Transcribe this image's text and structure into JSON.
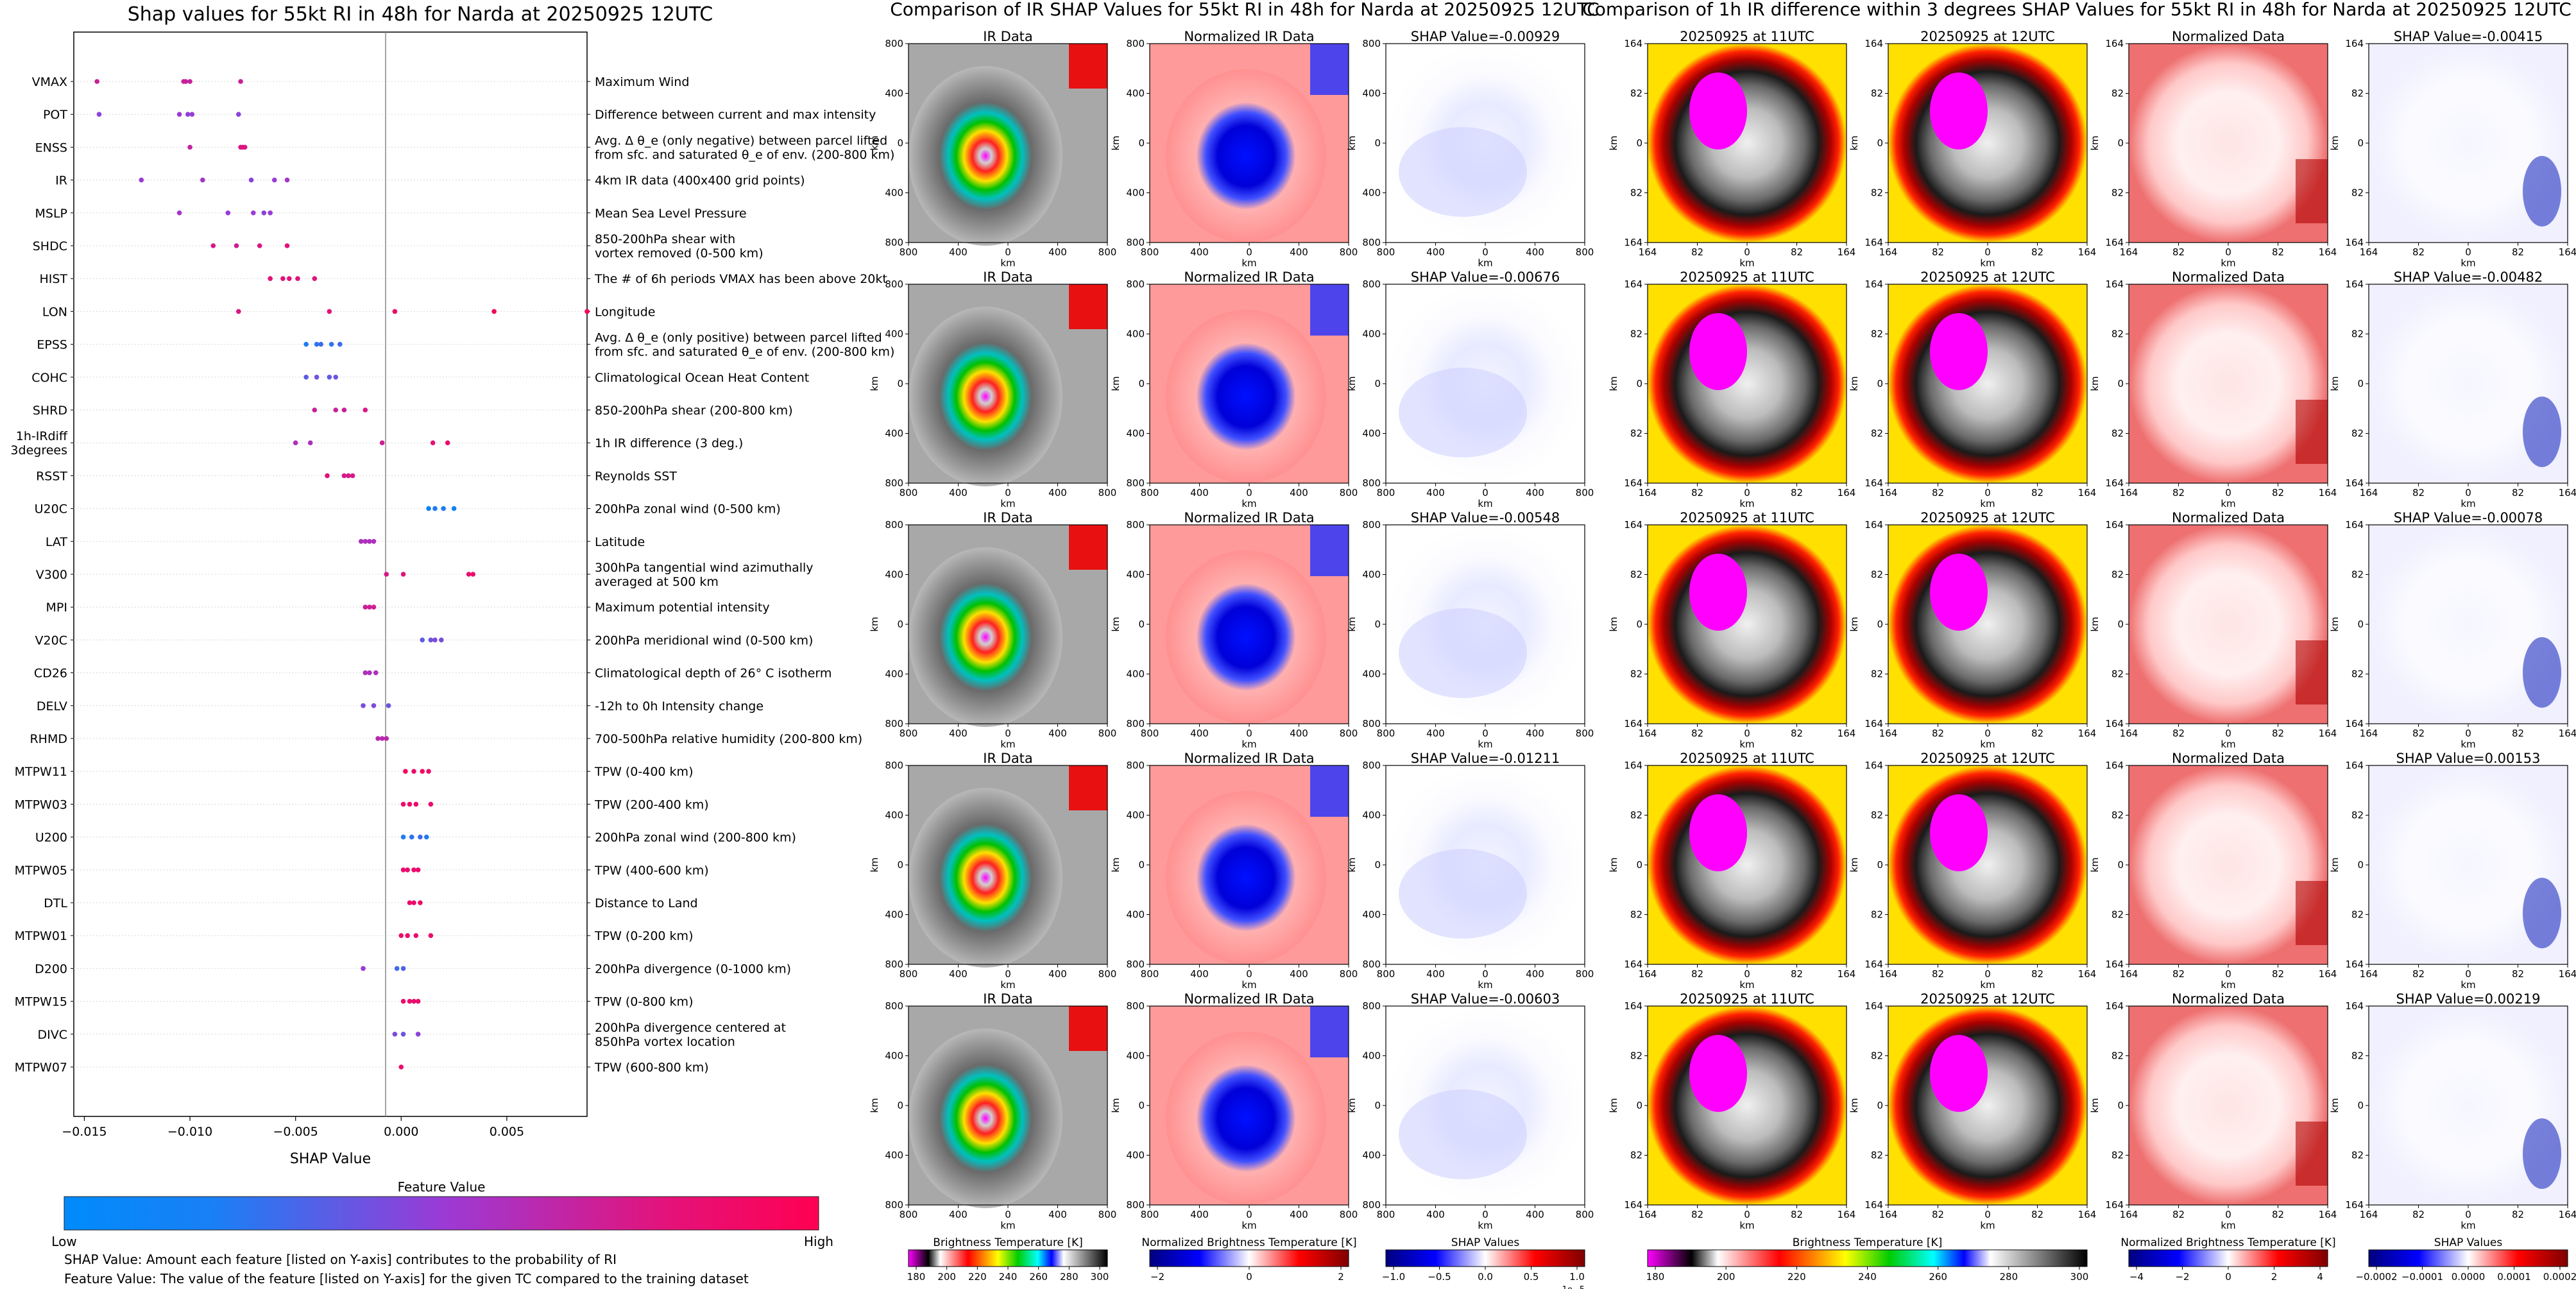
{
  "left": {
    "title": "Shap values for 55kt RI in 48h for Narda at 20250925 12UTC",
    "xlabel": "SHAP Value",
    "colorbar_title": "Feature Value",
    "colorbar_low": "Low",
    "colorbar_high": "High",
    "notes": [
      "SHAP Value: Amount each feature [listed on Y-axis] contributes to the probability of RI",
      "Feature Value: The value of the feature [listed on Y-axis] for the given TC compared to the training dataset"
    ]
  },
  "middle": {
    "title": "Comparison of IR SHAP Values for 55kt RI in 48h for Narda at 20250925 12UTC",
    "col_titles": [
      "IR Data",
      "Normalized IR Data"
    ],
    "shap_titles": [
      "SHAP Value=-0.00929",
      "SHAP Value=-0.00676",
      "SHAP Value=-0.00548",
      "SHAP Value=-0.01211",
      "SHAP Value=-0.00603"
    ],
    "ticks": [
      "800",
      "400",
      "0",
      "400",
      "800"
    ],
    "axis_label": "km",
    "colorbars": [
      {
        "label": "Brightness Temperature [K]",
        "ticks": [
          "180",
          "200",
          "220",
          "240",
          "260",
          "280",
          "300"
        ]
      },
      {
        "label": "Normalized Brightness Temperature [K]",
        "ticks": [
          "−2",
          "0",
          "2"
        ]
      },
      {
        "label": "SHAP Values",
        "ticks": [
          "−1.0",
          "−0.5",
          "0.0",
          "0.5",
          "1.0"
        ],
        "exponent": "1e−5"
      }
    ]
  },
  "right": {
    "title": "Comparison of 1h IR difference within 3 degrees SHAP Values for 55kt RI in 48h for Narda at 20250925 12UTC",
    "col_titles": [
      "20250925 at 11UTC",
      "20250925 at 12UTC",
      "Normalized Data"
    ],
    "shap_titles": [
      "SHAP Value=-0.00415",
      "SHAP Value=-0.00482",
      "SHAP Value=-0.00078",
      "SHAP Value=0.00153",
      "SHAP Value=0.00219"
    ],
    "ticks": [
      "164",
      "82",
      "0",
      "82",
      "164"
    ],
    "axis_label": "km",
    "colorbars": [
      {
        "label": "Brightness Temperature [K]",
        "ticks": [
          "180",
          "200",
          "220",
          "240",
          "260",
          "280",
          "300"
        ]
      },
      {
        "label": "Normalized Brightness Temperature [K]",
        "ticks": [
          "−4",
          "−2",
          "0",
          "2",
          "4"
        ]
      },
      {
        "label": "SHAP Values",
        "ticks": [
          "−0.0002",
          "−0.0001",
          "0.0000",
          "0.0001",
          "0.0002"
        ]
      }
    ]
  },
  "chart_data": {
    "type": "scatter",
    "title": "Shap values for 55kt RI in 48h for Narda at 20250925 12UTC",
    "xlabel": "SHAP Value",
    "xlim": [
      -0.0155,
      0.0088
    ],
    "xticks": [
      -0.015,
      -0.01,
      -0.005,
      0.0,
      0.005
    ],
    "xtick_labels": [
      "−0.015",
      "−0.010",
      "−0.005",
      "0.000",
      "0.005"
    ],
    "colors": {
      "low": "#008bfb",
      "high": "#ff0052"
    },
    "features": [
      {
        "name": "VMAX",
        "desc": [
          "Maximum Wind"
        ],
        "points": [
          [
            -0.0144,
            0.75
          ],
          [
            -0.0103,
            0.7
          ],
          [
            -0.0102,
            0.75
          ],
          [
            -0.01,
            0.7
          ],
          [
            -0.0076,
            0.75
          ]
        ]
      },
      {
        "name": "POT",
        "desc": [
          "Difference between current and max intensity"
        ],
        "points": [
          [
            -0.0143,
            0.45
          ],
          [
            -0.0105,
            0.5
          ],
          [
            -0.0101,
            0.45
          ],
          [
            -0.0099,
            0.5
          ],
          [
            -0.0077,
            0.45
          ]
        ]
      },
      {
        "name": "ENSS",
        "desc": [
          "Avg. Δ θ_e (only negative) between parcel lifted",
          "from sfc. and saturated θ_e of env. (200-800 km)"
        ],
        "points": [
          [
            -0.01,
            0.7
          ],
          [
            -0.0076,
            0.8
          ],
          [
            -0.0075,
            0.85
          ],
          [
            -0.0074,
            0.8
          ]
        ]
      },
      {
        "name": "IR",
        "desc": [
          "4km IR data (400x400 grid points)"
        ],
        "points": [
          [
            -0.0123,
            0.5
          ],
          [
            -0.0094,
            0.55
          ],
          [
            -0.0071,
            0.45
          ],
          [
            -0.006,
            0.5
          ],
          [
            -0.0054,
            0.55
          ]
        ]
      },
      {
        "name": "MSLP",
        "desc": [
          "Mean Sea Level Pressure"
        ],
        "points": [
          [
            -0.0105,
            0.55
          ],
          [
            -0.0082,
            0.5
          ],
          [
            -0.007,
            0.5
          ],
          [
            -0.0065,
            0.45
          ],
          [
            -0.0062,
            0.5
          ]
        ]
      },
      {
        "name": "SHDC",
        "desc": [
          "850-200hPa shear with",
          "vortex removed (0-500 km)"
        ],
        "points": [
          [
            -0.0089,
            0.8
          ],
          [
            -0.0078,
            0.75
          ],
          [
            -0.0067,
            0.8
          ],
          [
            -0.0054,
            0.85
          ]
        ]
      },
      {
        "name": "HIST",
        "desc": [
          "The # of 6h periods VMAX has been above 20kt"
        ],
        "points": [
          [
            -0.0062,
            0.85
          ],
          [
            -0.0056,
            0.85
          ],
          [
            -0.0053,
            0.85
          ],
          [
            -0.0049,
            0.85
          ],
          [
            -0.0041,
            0.85
          ]
        ]
      },
      {
        "name": "LON",
        "desc": [
          "Longitude"
        ],
        "points": [
          [
            -0.0077,
            0.8
          ],
          [
            -0.0034,
            0.85
          ],
          [
            -0.0003,
            0.9
          ],
          [
            0.0044,
            0.95
          ],
          [
            0.0088,
            1.0
          ]
        ]
      },
      {
        "name": "EPSS",
        "desc": [
          "Avg. Δ θ_e (only positive) between parcel lifted",
          "from sfc. and saturated θ_e of env. (200-800 km)"
        ],
        "points": [
          [
            -0.0045,
            0.1
          ],
          [
            -0.004,
            0.15
          ],
          [
            -0.0038,
            0.2
          ],
          [
            -0.0033,
            0.15
          ],
          [
            -0.0029,
            0.2
          ]
        ]
      },
      {
        "name": "COHC",
        "desc": [
          "Climatological Ocean Heat Content"
        ],
        "points": [
          [
            -0.0045,
            0.3
          ],
          [
            -0.004,
            0.35
          ],
          [
            -0.0034,
            0.3
          ],
          [
            -0.0031,
            0.35
          ]
        ]
      },
      {
        "name": "SHRD",
        "desc": [
          "850-200hPa shear (200-800 km)"
        ],
        "points": [
          [
            -0.0041,
            0.75
          ],
          [
            -0.0031,
            0.75
          ],
          [
            -0.0027,
            0.75
          ],
          [
            -0.0017,
            0.8
          ]
        ]
      },
      {
        "name": "1h-IRdiff\n3degrees",
        "desc": [
          "1h IR difference (3 deg.)"
        ],
        "points": [
          [
            -0.005,
            0.6
          ],
          [
            -0.0043,
            0.6
          ],
          [
            -0.0009,
            0.75
          ],
          [
            0.0015,
            0.85
          ],
          [
            0.0022,
            0.9
          ]
        ]
      },
      {
        "name": "RSST",
        "desc": [
          "Reynolds SST"
        ],
        "points": [
          [
            -0.0035,
            0.85
          ],
          [
            -0.0027,
            0.8
          ],
          [
            -0.0025,
            0.8
          ],
          [
            -0.0023,
            0.8
          ]
        ]
      },
      {
        "name": "U20C",
        "desc": [
          "200hPa zonal wind (0-500 km)"
        ],
        "points": [
          [
            0.0013,
            0.05
          ],
          [
            0.0016,
            0.1
          ],
          [
            0.002,
            0.1
          ],
          [
            0.0025,
            0.05
          ]
        ]
      },
      {
        "name": "LAT",
        "desc": [
          "Latitude"
        ],
        "points": [
          [
            -0.0019,
            0.6
          ],
          [
            -0.0017,
            0.6
          ],
          [
            -0.0015,
            0.6
          ],
          [
            -0.0013,
            0.6
          ]
        ]
      },
      {
        "name": "V300",
        "desc": [
          "300hPa tangential wind azimuthally",
          "averaged at 500 km"
        ],
        "points": [
          [
            -0.0007,
            0.8
          ],
          [
            0.0001,
            0.85
          ],
          [
            0.0032,
            0.9
          ],
          [
            0.0034,
            0.9
          ]
        ]
      },
      {
        "name": "MPI",
        "desc": [
          "Maximum potential intensity"
        ],
        "points": [
          [
            -0.0017,
            0.75
          ],
          [
            -0.0015,
            0.75
          ],
          [
            -0.0013,
            0.75
          ]
        ]
      },
      {
        "name": "V20C",
        "desc": [
          "200hPa meridional wind (0-500 km)"
        ],
        "points": [
          [
            0.001,
            0.3
          ],
          [
            0.0014,
            0.35
          ],
          [
            0.0016,
            0.4
          ],
          [
            0.0019,
            0.4
          ]
        ]
      },
      {
        "name": "CD26",
        "desc": [
          "Climatological depth of 26° C isotherm"
        ],
        "points": [
          [
            -0.0017,
            0.6
          ],
          [
            -0.0015,
            0.6
          ],
          [
            -0.0012,
            0.6
          ]
        ]
      },
      {
        "name": "DELV",
        "desc": [
          "-12h to 0h Intensity change"
        ],
        "points": [
          [
            -0.0018,
            0.4
          ],
          [
            -0.0013,
            0.4
          ],
          [
            -0.0006,
            0.35
          ]
        ]
      },
      {
        "name": "RHMD",
        "desc": [
          "700-500hPa relative humidity (200-800 km)"
        ],
        "points": [
          [
            -0.0011,
            0.65
          ],
          [
            -0.0009,
            0.65
          ],
          [
            -0.0007,
            0.65
          ]
        ]
      },
      {
        "name": "MTPW11",
        "desc": [
          "TPW (0-400 km)"
        ],
        "points": [
          [
            0.0002,
            0.95
          ],
          [
            0.0006,
            0.9
          ],
          [
            0.001,
            0.95
          ],
          [
            0.0013,
            0.9
          ]
        ]
      },
      {
        "name": "MTPW03",
        "desc": [
          "TPW (200-400 km)"
        ],
        "points": [
          [
            0.0001,
            0.9
          ],
          [
            0.0004,
            0.9
          ],
          [
            0.0007,
            0.9
          ],
          [
            0.0014,
            0.9
          ]
        ]
      },
      {
        "name": "U200",
        "desc": [
          "200hPa zonal wind (200-800 km)"
        ],
        "points": [
          [
            0.0001,
            0.1
          ],
          [
            0.0005,
            0.15
          ],
          [
            0.0009,
            0.2
          ],
          [
            0.0012,
            0.1
          ]
        ]
      },
      {
        "name": "MTPW05",
        "desc": [
          "TPW (400-600 km)"
        ],
        "points": [
          [
            0.0001,
            0.9
          ],
          [
            0.0003,
            0.9
          ],
          [
            0.0006,
            0.9
          ],
          [
            0.0008,
            0.9
          ]
        ]
      },
      {
        "name": "DTL",
        "desc": [
          "Distance to Land"
        ],
        "points": [
          [
            0.0004,
            0.9
          ],
          [
            0.0006,
            0.9
          ],
          [
            0.0009,
            0.9
          ]
        ]
      },
      {
        "name": "MTPW01",
        "desc": [
          "TPW (0-200 km)"
        ],
        "points": [
          [
            0.0,
            0.9
          ],
          [
            0.0003,
            0.9
          ],
          [
            0.0007,
            0.9
          ],
          [
            0.0014,
            0.9
          ]
        ]
      },
      {
        "name": "D200",
        "desc": [
          "200hPa divergence (0-1000 km)"
        ],
        "points": [
          [
            -0.0018,
            0.5
          ],
          [
            -0.0002,
            0.2
          ],
          [
            0.0001,
            0.25
          ]
        ]
      },
      {
        "name": "MTPW15",
        "desc": [
          "TPW (0-800 km)"
        ],
        "points": [
          [
            0.0001,
            0.9
          ],
          [
            0.0004,
            0.9
          ],
          [
            0.0006,
            0.9
          ],
          [
            0.0008,
            0.9
          ]
        ]
      },
      {
        "name": "DIVC",
        "desc": [
          "200hPa divergence centered at",
          "850hPa vortex location"
        ],
        "points": [
          [
            -0.0003,
            0.4
          ],
          [
            0.0001,
            0.35
          ],
          [
            0.0008,
            0.45
          ]
        ]
      },
      {
        "name": "MTPW07",
        "desc": [
          "TPW (600-800 km)"
        ],
        "points": [
          [
            0.0,
            0.9
          ]
        ]
      }
    ]
  }
}
